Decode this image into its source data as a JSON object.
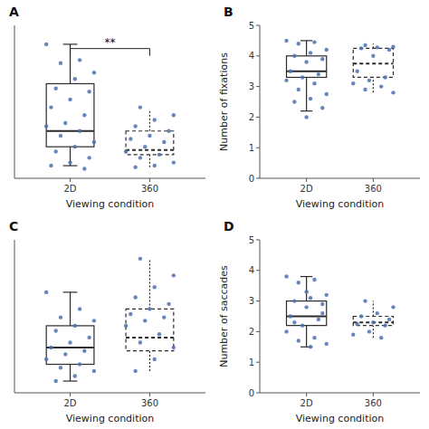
{
  "chart_data": [
    {
      "type": "box",
      "title": "A",
      "xlabel": "Viewing condition",
      "categories": [
        "2D",
        "360"
      ],
      "boxes": [
        {
          "q1": 1.5,
          "median": 2.5,
          "q3": 5.5,
          "whislo": 0.3,
          "whishi": 8.0,
          "line_style": "solid"
        },
        {
          "q1": 1.0,
          "median": 1.3,
          "q3": 2.5,
          "whislo": 0.2,
          "whishi": 3.8,
          "line_style": "dashed"
        }
      ],
      "points": [
        [
          8.0,
          7.0,
          6.8,
          6.2,
          5.8,
          5.2,
          5.0,
          4.5,
          4.0,
          3.5,
          3.0,
          2.8,
          2.5,
          2.2,
          1.8,
          1.5,
          1.2,
          0.8,
          0.5,
          0.3,
          0.1
        ],
        [
          4.0,
          3.5,
          3.2,
          2.8,
          2.5,
          2.2,
          2.0,
          1.8,
          1.5,
          1.2,
          1.0,
          0.8,
          0.5,
          0.3,
          0.2
        ]
      ],
      "annotations": [
        {
          "text": "**",
          "y": 7.728
        }
      ],
      "ylim": [
        -0.5,
        9.2
      ],
      "tick_labels": "x"
    },
    {
      "type": "box",
      "title": "B",
      "xlabel": "Viewing condition",
      "ylabel": "Number of fixations",
      "categories": [
        "2D",
        "360"
      ],
      "boxes": [
        {
          "q1": 3.3,
          "median": 3.5,
          "q3": 4.0,
          "whislo": 2.2,
          "whishi": 4.5,
          "line_style": "solid"
        },
        {
          "q1": 3.3,
          "median": 3.75,
          "q3": 4.25,
          "whislo": 2.8,
          "whishi": 4.4,
          "line_style": "dashed"
        }
      ],
      "points": [
        [
          4.5,
          4.45,
          4.4,
          4.2,
          4.1,
          4.0,
          3.9,
          3.8,
          3.5,
          3.4,
          3.3,
          3.2,
          3.1,
          2.9,
          2.75,
          2.6,
          2.5,
          2.3,
          2.0
        ],
        [
          4.35,
          4.3,
          4.28,
          4.25,
          4.2,
          4.0,
          3.5,
          3.3,
          3.2,
          3.1,
          3.0,
          2.9,
          2.8
        ]
      ],
      "ylim": [
        0,
        5
      ],
      "yticks": [
        0,
        1,
        2,
        3,
        4,
        5
      ]
    },
    {
      "type": "box",
      "title": "C",
      "xlabel": "Viewing condition",
      "categories": [
        "2D",
        "360"
      ],
      "boxes": [
        {
          "q1": 1.2,
          "median": 2.2,
          "q3": 3.5,
          "whislo": 0.2,
          "whishi": 5.5,
          "line_style": "solid"
        },
        {
          "q1": 2.0,
          "median": 2.8,
          "q3": 4.5,
          "whislo": 0.8,
          "whishi": 7.5,
          "line_style": "dashed"
        }
      ],
      "points": [
        [
          5.5,
          4.5,
          4.0,
          3.8,
          3.5,
          3.2,
          2.8,
          2.5,
          2.2,
          2.0,
          1.8,
          1.5,
          1.2,
          1.0,
          0.8,
          0.5,
          0.2
        ],
        [
          7.5,
          6.5,
          5.8,
          5.2,
          4.8,
          4.5,
          4.2,
          4.0,
          3.8,
          3.5,
          3.0,
          2.5,
          2.2,
          1.5,
          0.8
        ]
      ],
      "ylim": [
        -0.5,
        8.625
      ],
      "tick_labels": "x"
    },
    {
      "type": "box",
      "title": "D",
      "xlabel": "Viewing condition",
      "ylabel": "Number of saccades",
      "categories": [
        "2D",
        "360"
      ],
      "boxes": [
        {
          "q1": 2.2,
          "median": 2.5,
          "q3": 3.0,
          "whislo": 1.5,
          "whishi": 3.8,
          "line_style": "solid"
        },
        {
          "q1": 2.2,
          "median": 2.3,
          "q3": 2.5,
          "whislo": 1.8,
          "whishi": 3.0,
          "line_style": "dashed"
        }
      ],
      "points": [
        [
          3.8,
          3.7,
          3.6,
          3.2,
          3.1,
          3.0,
          2.9,
          2.8,
          2.5,
          2.4,
          2.2,
          2.0,
          1.8,
          1.7,
          1.6,
          1.5,
          2.3,
          2.6,
          3.3
        ],
        [
          3.0,
          2.8,
          2.6,
          2.5,
          2.4,
          2.3,
          2.25,
          2.2,
          2.0,
          1.9,
          1.8
        ]
      ],
      "ylim": [
        0,
        5
      ],
      "yticks": [
        0,
        1,
        2,
        3,
        4,
        5
      ]
    }
  ]
}
